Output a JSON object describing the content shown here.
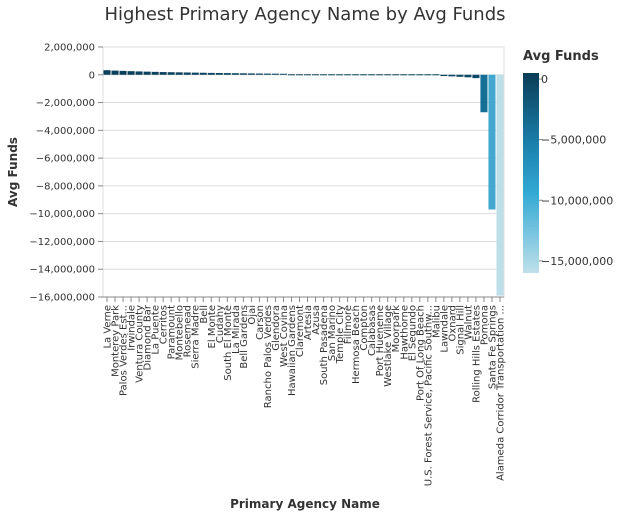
{
  "chart_data": {
    "type": "bar",
    "title": "Highest Primary Agency Name by Avg Funds",
    "xlabel": "Primary Agency Name",
    "ylabel": "Avg Funds",
    "ylim": [
      -16000000,
      2000000
    ],
    "y_ticks": [
      2000000,
      0,
      -2000000,
      -4000000,
      -6000000,
      -8000000,
      -10000000,
      -12000000,
      -14000000,
      -16000000
    ],
    "y_tick_labels": [
      "2,000,000",
      "0",
      "−2,000,000",
      "−4,000,000",
      "−6,000,000",
      "−8,000,000",
      "−10,000,000",
      "−12,000,000",
      "−14,000,000",
      "−16,000,000"
    ],
    "grid": true,
    "categories": [
      "La Verne",
      "Monterey Park",
      "Palos Verdes Est...",
      "Irwindale",
      "Ventura County",
      "Diamond Bar",
      "La Puente",
      "Cerritos",
      "Paramount",
      "Montebello",
      "Rosemead",
      "Sierra Madre",
      "Bell",
      "El Monte",
      "Cudahy",
      "South El Monte",
      "La Mirada",
      "Bell Gardens",
      "Ojai",
      "Carson",
      "Rancho Palos Verdes",
      "Glendora",
      "West Covina",
      "Hawaiian Gardens",
      "Claremont",
      "Artesia",
      "Azusa",
      "South Pasadena",
      "San Marino",
      "Temple City",
      "Fillmore",
      "Hermosa Beach",
      "Compton",
      "Calabasas",
      "Port Hueneme",
      "Westlake Village",
      "Moorpark",
      "Hawthorne",
      "El Segundo",
      "Port Of Long Beach",
      "U.S. Forest Service, Pacific Southw...",
      "Malibu",
      "Lawndale",
      "Oxnard",
      "Signal Hill",
      "Walnut",
      "Rolling Hills Estates",
      "Pomona",
      "Santa Fe Springs",
      "Alameda Corridor Transportation ..."
    ],
    "values": [
      330000,
      300000,
      280000,
      260000,
      240000,
      225000,
      210000,
      195000,
      185000,
      175000,
      165000,
      155000,
      145000,
      135000,
      128000,
      120000,
      112000,
      105000,
      98000,
      90000,
      84000,
      78000,
      72000,
      66000,
      60000,
      54000,
      48000,
      42000,
      36000,
      30000,
      24000,
      18000,
      12000,
      6000,
      0,
      -6000,
      -14000,
      -22000,
      -32000,
      -42000,
      -55000,
      -70000,
      -90000,
      -115000,
      -145000,
      -180000,
      -240000,
      -2700000,
      -9700000,
      -15900000
    ],
    "legend": {
      "title": "Avg Funds",
      "placement": "right",
      "ticks": [
        0,
        -5000000,
        -10000000,
        -15000000
      ],
      "tick_labels": [
        "0",
        "−5,000,000",
        "−10,000,000",
        "−15,000,000"
      ],
      "domain": [
        -16000000,
        500000
      ]
    },
    "colors": {
      "dark": "#0b3d57",
      "mid_dark": "#1576a0",
      "mid": "#2aa3d1",
      "light": "#a8d6e6",
      "lightest": "#bfe0ea",
      "grid": "#dddddd",
      "axis": "#888888"
    }
  }
}
